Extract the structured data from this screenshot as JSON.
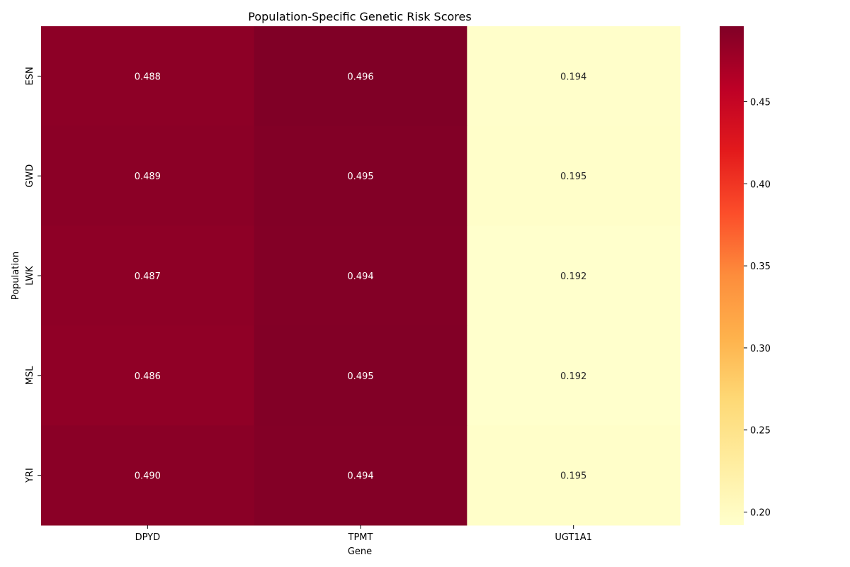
{
  "chart_data": {
    "type": "heatmap",
    "title": "Population-Specific Genetic Risk Scores",
    "xlabel": "Gene",
    "ylabel": "Population",
    "columns": [
      "DPYD",
      "TPMT",
      "UGT1A1"
    ],
    "rows": [
      "ESN",
      "GWD",
      "LWK",
      "MSL",
      "YRI"
    ],
    "values": [
      [
        0.488,
        0.496,
        0.194
      ],
      [
        0.489,
        0.495,
        0.195
      ],
      [
        0.487,
        0.494,
        0.192
      ],
      [
        0.486,
        0.495,
        0.192
      ],
      [
        0.49,
        0.494,
        0.195
      ]
    ],
    "value_labels": [
      [
        "0.488",
        "0.496",
        "0.194"
      ],
      [
        "0.489",
        "0.495",
        "0.195"
      ],
      [
        "0.487",
        "0.494",
        "0.192"
      ],
      [
        "0.486",
        "0.495",
        "0.192"
      ],
      [
        "0.490",
        "0.494",
        "0.195"
      ]
    ],
    "colormap": "YlOrRd",
    "vmin": 0.192,
    "vmax": 0.496,
    "colorbar_ticks": [
      0.2,
      0.25,
      0.3,
      0.35,
      0.4,
      0.45
    ],
    "colorbar_tick_labels": [
      "0.20",
      "0.25",
      "0.30",
      "0.35",
      "0.40",
      "0.45"
    ],
    "colorbar_position": "right",
    "grid": false
  }
}
